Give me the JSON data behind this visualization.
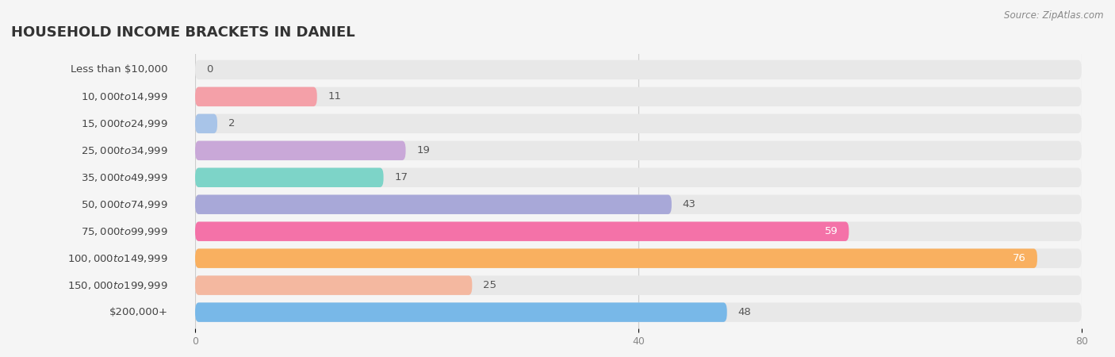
{
  "title": "HOUSEHOLD INCOME BRACKETS IN DANIEL",
  "source": "Source: ZipAtlas.com",
  "categories": [
    "Less than $10,000",
    "$10,000 to $14,999",
    "$15,000 to $24,999",
    "$25,000 to $34,999",
    "$35,000 to $49,999",
    "$50,000 to $74,999",
    "$75,000 to $99,999",
    "$100,000 to $149,999",
    "$150,000 to $199,999",
    "$200,000+"
  ],
  "values": [
    0,
    11,
    2,
    19,
    17,
    43,
    59,
    76,
    25,
    48
  ],
  "bar_colors": [
    "#f9c89b",
    "#f4a0a8",
    "#a8c4e8",
    "#c9a8d8",
    "#7dd4c8",
    "#a8a8d8",
    "#f472a8",
    "#f9b060",
    "#f4b8a0",
    "#78b8e8"
  ],
  "xlim": [
    0,
    80
  ],
  "xticks": [
    0,
    40,
    80
  ],
  "background_color": "#f5f5f5",
  "bar_bg_color": "#e8e8e8",
  "title_fontsize": 13,
  "label_fontsize": 9.5,
  "value_fontsize": 9.5,
  "label_color": "#555555",
  "value_color_light": "#555555",
  "value_color_dark": "#ffffff"
}
